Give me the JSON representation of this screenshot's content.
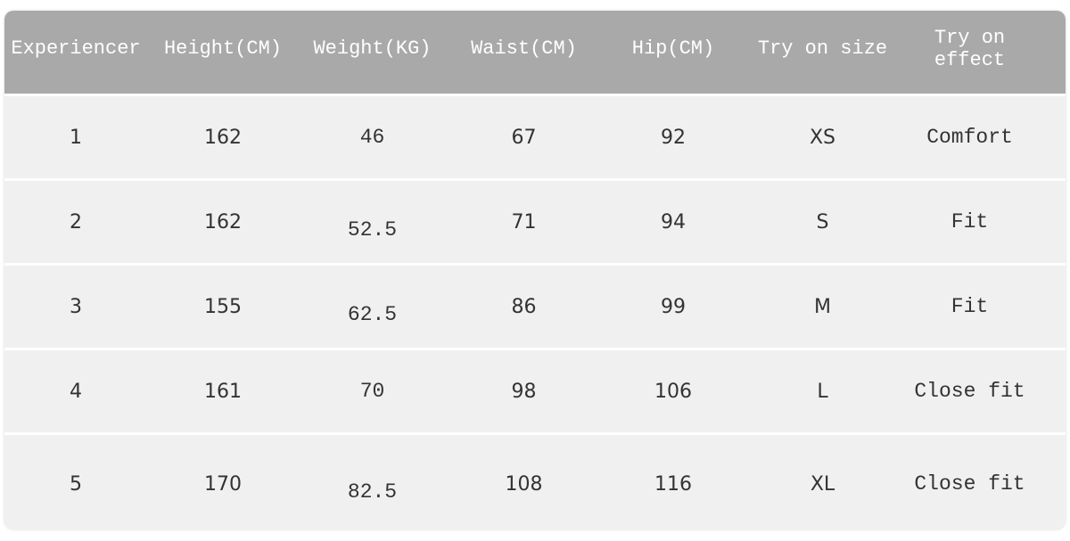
{
  "table": {
    "headers": [
      "Experiencer",
      "Height(CM)",
      "Weight(KG)",
      "Waist(CM)",
      "Hip(CM)",
      "Try on size",
      "Try on effect"
    ],
    "header_color": "#a9a9a9",
    "row_color": "#f0f0f0",
    "rows": [
      [
        "1",
        "162",
        "46",
        "67",
        "92",
        "XS",
        "Comfort"
      ],
      [
        "2",
        "162",
        "52.5",
        "71",
        "94",
        "S",
        "Fit"
      ],
      [
        "3",
        "155",
        "62.5",
        "86",
        "99",
        "M",
        "Fit"
      ],
      [
        "4",
        "161",
        "70",
        "98",
        "106",
        "L",
        "Close fit"
      ],
      [
        "5",
        "170",
        "82.5",
        "108",
        "116",
        "XL",
        "Close fit"
      ]
    ]
  }
}
